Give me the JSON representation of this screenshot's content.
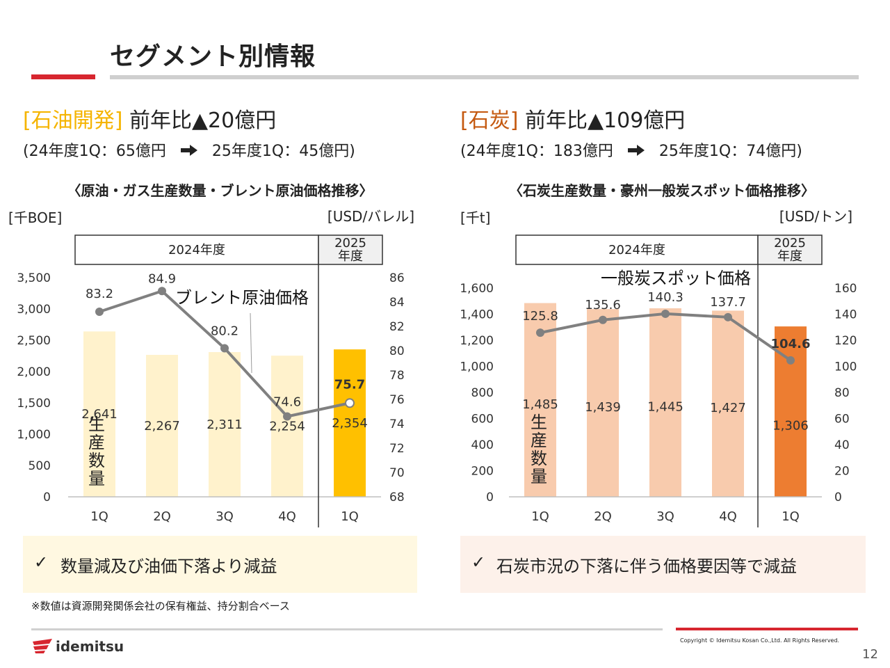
{
  "page": {
    "title": "セグメント別情報",
    "footnote": "※数値は資源開発関係会社の保有権益、持分割合ベース",
    "copyright": "Copyright © Idemitsu Kosan Co.,Ltd.  All Rights Reserved.",
    "page_number": "12",
    "logo_text": "idemitsu",
    "colors": {
      "accent_red": "#d7262f",
      "oil_orange": "#f5b400",
      "coal_orange": "#c55a11"
    }
  },
  "left": {
    "segment_label": "[石油開発]",
    "yoy": "前年比▲20億円",
    "sub_from": "(24年度1Q：65億円",
    "sub_to": "25年度1Q：45億円)",
    "chart_title": "〈原油・ガス生産数量・ブレント原油価格推移〉",
    "note": "数量減及び油価下落より減益",
    "check_icon": "✓"
  },
  "right": {
    "segment_label": "[石炭]",
    "yoy": "前年比▲109億円",
    "sub_from": "(24年度1Q：183億円",
    "sub_to": "25年度1Q：74億円)",
    "chart_title": "〈石炭生産数量・豪州一般炭スポット価格推移〉",
    "note": "石炭市況の下落に伴う価格要因等で減益",
    "check_icon": "✓"
  },
  "chart_data": [
    {
      "type": "bar",
      "categories": [
        "1Q",
        "2Q",
        "3Q",
        "4Q",
        "1Q"
      ],
      "period_headers": [
        "2024年度",
        "2025\n年度"
      ],
      "y_left_label": "[千BOE]",
      "y_right_label": "[USD/バレル]",
      "y_left_ticks": [
        "0",
        "500",
        "1,000",
        "1,500",
        "2,000",
        "2,500",
        "3,000",
        "3,500"
      ],
      "y_right_ticks": [
        "68",
        "70",
        "72",
        "74",
        "76",
        "78",
        "80",
        "82",
        "84",
        "86"
      ],
      "ylim_left": [
        0,
        3500
      ],
      "ylim_right": [
        68,
        86
      ],
      "series": [
        {
          "name": "生産数量",
          "kind": "bar",
          "values": [
            2641,
            2267,
            2311,
            2254,
            2354
          ],
          "labels": [
            "2,641",
            "2,267",
            "2,311",
            "2,254",
            "2,354"
          ]
        },
        {
          "name": "ブレント原油価格",
          "kind": "line",
          "axis": "right",
          "values": [
            83.2,
            84.9,
            80.2,
            74.6,
            75.7
          ],
          "labels": [
            "83.2",
            "84.9",
            "80.2",
            "74.6",
            "75.7"
          ]
        }
      ],
      "bar_colors": [
        "#fff2cc",
        "#fff2cc",
        "#fff2cc",
        "#fff2cc",
        "#ffc000"
      ]
    },
    {
      "type": "bar",
      "categories": [
        "1Q",
        "2Q",
        "3Q",
        "4Q",
        "1Q"
      ],
      "period_headers": [
        "2024年度",
        "2025\n年度"
      ],
      "y_left_label": "[千t]",
      "y_right_label": "[USD/トン]",
      "y_left_ticks": [
        "0",
        "200",
        "400",
        "600",
        "800",
        "1,000",
        "1,200",
        "1,400",
        "1,600"
      ],
      "y_right_ticks": [
        "0",
        "20",
        "40",
        "60",
        "80",
        "100",
        "120",
        "140",
        "160"
      ],
      "ylim_left": [
        0,
        1600
      ],
      "ylim_right": [
        0,
        160
      ],
      "series": [
        {
          "name": "生産数量",
          "kind": "bar",
          "values": [
            1485,
            1439,
            1445,
            1427,
            1306
          ],
          "labels": [
            "1,485",
            "1,439",
            "1,445",
            "1,427",
            "1,306"
          ]
        },
        {
          "name": "一般炭スポット価格",
          "kind": "line",
          "axis": "right",
          "values": [
            125.8,
            135.6,
            140.3,
            137.7,
            104.6
          ],
          "labels": [
            "125.8",
            "135.6",
            "140.3",
            "137.7",
            "104.6"
          ]
        }
      ],
      "bar_colors": [
        "#f8cbad",
        "#f8cbad",
        "#f8cbad",
        "#f8cbad",
        "#ed7d31"
      ]
    }
  ]
}
